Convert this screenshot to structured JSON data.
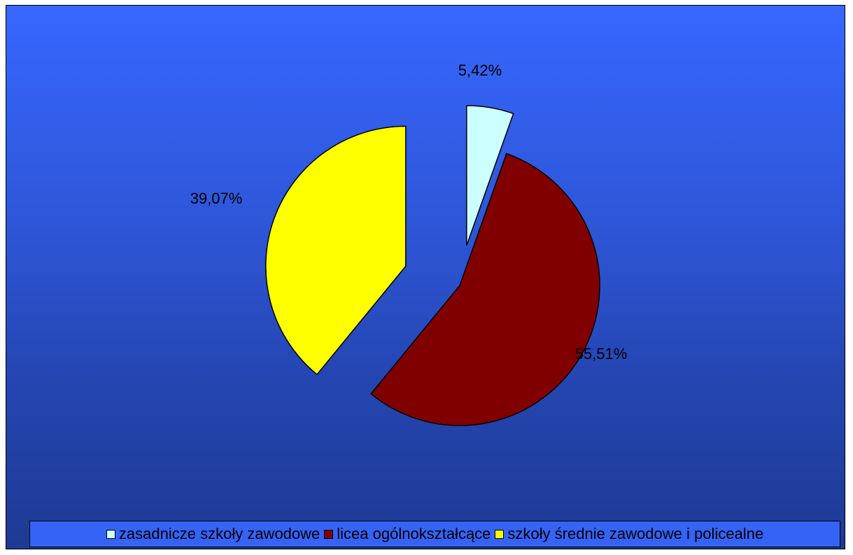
{
  "chart_data": {
    "type": "pie",
    "categories": [
      "zasadnicze szkoły zawodowe",
      "licea ogólnokształcące",
      "szkoły średnie zawodowe i policealne"
    ],
    "values": [
      5.42,
      55.51,
      39.07
    ],
    "labels": [
      "5,42%",
      "55,51%",
      "39,07%"
    ],
    "colors": [
      "#ccffff",
      "#800000",
      "#ffff00"
    ],
    "exploded": true,
    "legend_position": "bottom",
    "title": ""
  }
}
